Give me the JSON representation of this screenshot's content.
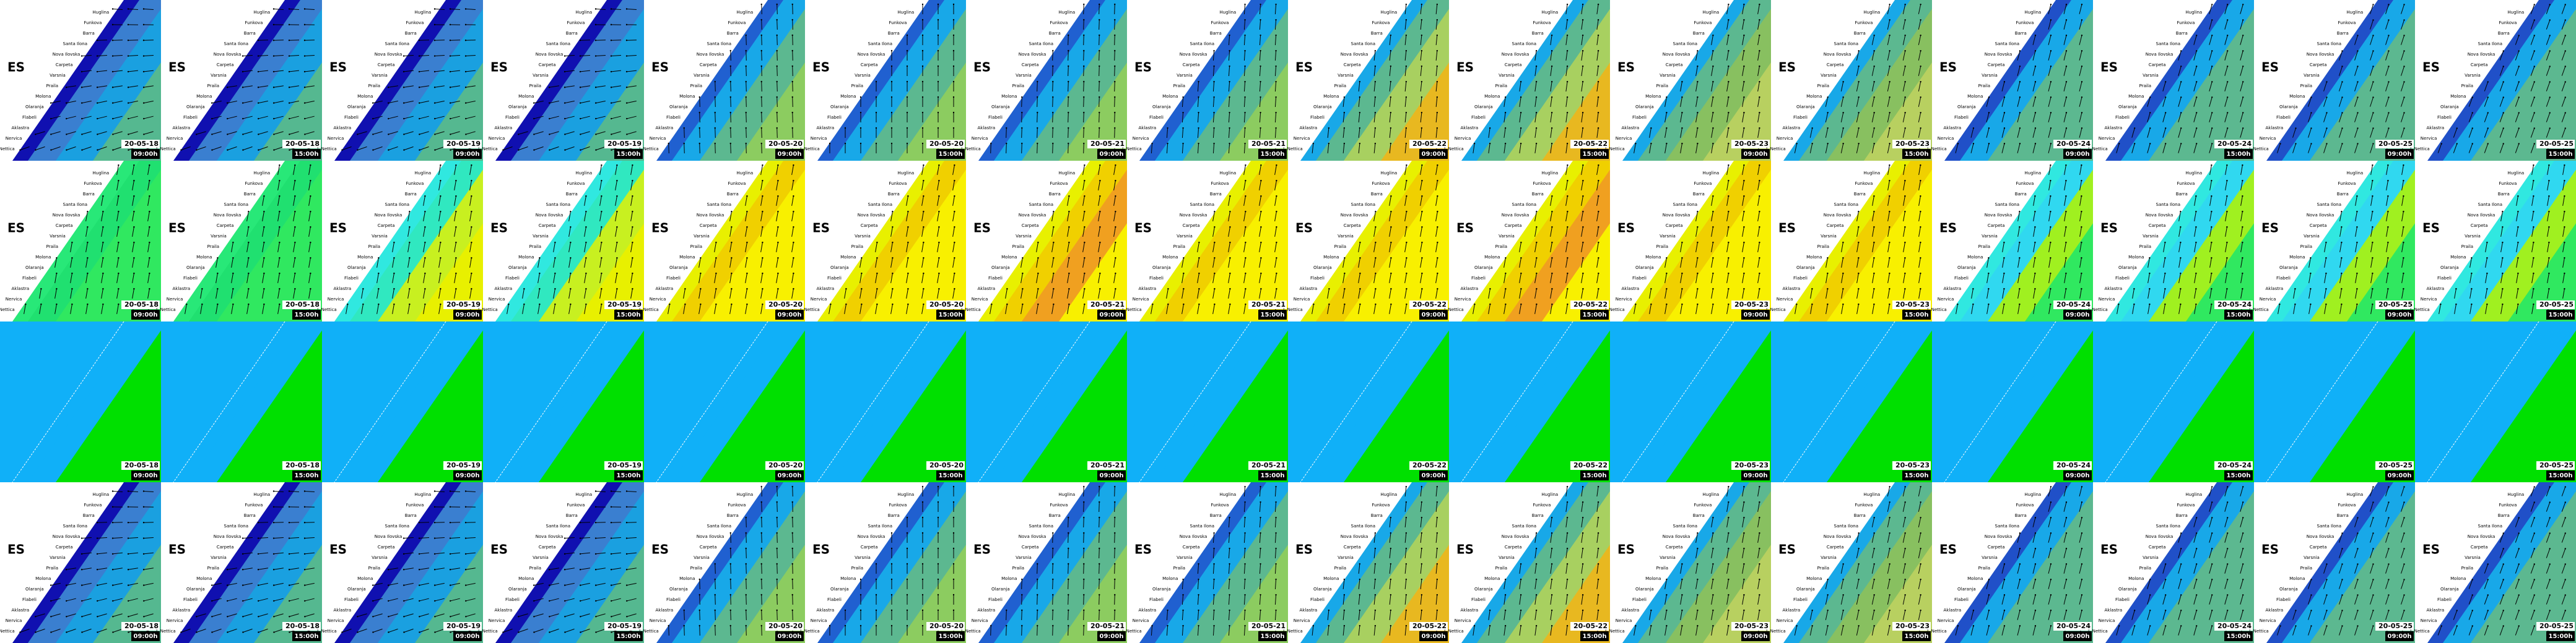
{
  "country_label": "ES",
  "place_names": [
    "Huglina",
    "Funkova",
    "Barra",
    "Santa Ilona",
    "Nova Ilovska",
    "Carpeta",
    "Varsnia",
    "Praila",
    "Molona",
    "Olaranja",
    "Flabeli",
    "Aklastra",
    "Nervica",
    "I. Nettica"
  ],
  "columns": [
    {
      "date": "20-05-18",
      "time": "09:00h"
    },
    {
      "date": "20-05-18",
      "time": "15:00h"
    },
    {
      "date": "20-05-19",
      "time": "09:00h"
    },
    {
      "date": "20-05-19",
      "time": "15:00h"
    },
    {
      "date": "20-05-20",
      "time": "09:00h"
    },
    {
      "date": "20-05-20",
      "time": "15:00h"
    },
    {
      "date": "20-05-21",
      "time": "09:00h"
    },
    {
      "date": "20-05-21",
      "time": "15:00h"
    },
    {
      "date": "20-05-22",
      "time": "09:00h"
    },
    {
      "date": "20-05-22",
      "time": "15:00h"
    },
    {
      "date": "20-05-23",
      "time": "09:00h"
    },
    {
      "date": "20-05-23",
      "time": "15:00h"
    },
    {
      "date": "20-05-24",
      "time": "09:00h"
    },
    {
      "date": "20-05-24",
      "time": "15:00h"
    },
    {
      "date": "20-05-25",
      "time": "09:00h"
    },
    {
      "date": "20-05-25",
      "time": "15:00h"
    }
  ]
}
